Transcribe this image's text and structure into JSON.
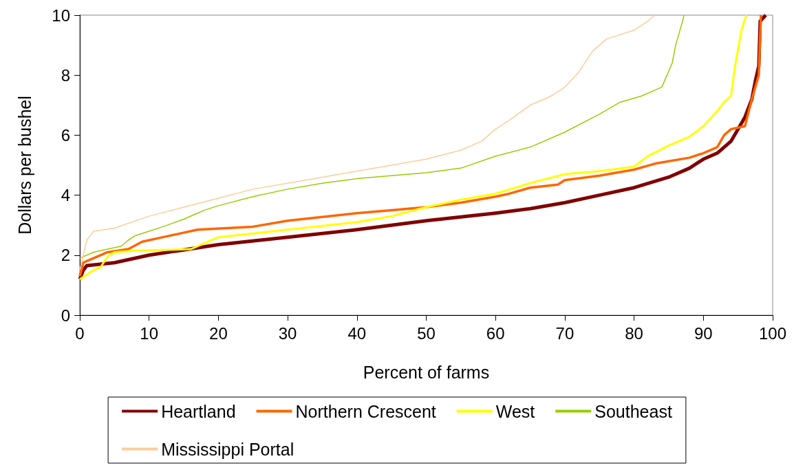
{
  "chart_data": {
    "type": "line",
    "xlabel": "Percent of farms",
    "ylabel": "Dollars per bushel",
    "xlim": [
      0,
      100
    ],
    "xticks": [
      0,
      10,
      20,
      30,
      40,
      50,
      60,
      70,
      80,
      90,
      100
    ],
    "ylim": [
      0,
      10
    ],
    "yticks": [
      0,
      2,
      4,
      6,
      8,
      10
    ],
    "legend": "bottom",
    "grid": false,
    "series": [
      {
        "name": "Heartland",
        "color": "#800000",
        "x": [
          0,
          0.5,
          1,
          5,
          10,
          20,
          30,
          40,
          50,
          60,
          65,
          70,
          75,
          80,
          85,
          88,
          90,
          92,
          94,
          95,
          96,
          97,
          97.5,
          98,
          98.2,
          99
        ],
        "values": [
          1.2,
          1.5,
          1.65,
          1.75,
          2.0,
          2.35,
          2.6,
          2.85,
          3.15,
          3.4,
          3.55,
          3.75,
          4.0,
          4.25,
          4.6,
          4.9,
          5.2,
          5.4,
          5.8,
          6.2,
          6.6,
          7.2,
          7.8,
          8.3,
          9.8,
          10
        ]
      },
      {
        "name": "Northern Crescent",
        "color": "#ff6600",
        "x": [
          0,
          0.5,
          2,
          4,
          7,
          9,
          12,
          15,
          17,
          25,
          30,
          40,
          45,
          50,
          55,
          60,
          62,
          65,
          69,
          70,
          75,
          80,
          83,
          88,
          90,
          92,
          93,
          94,
          96,
          97,
          98,
          98.3
        ],
        "values": [
          1.3,
          1.75,
          1.9,
          2.1,
          2.2,
          2.45,
          2.6,
          2.75,
          2.85,
          2.95,
          3.15,
          3.4,
          3.5,
          3.6,
          3.75,
          3.95,
          4.05,
          4.25,
          4.35,
          4.5,
          4.65,
          4.85,
          5.05,
          5.25,
          5.4,
          5.6,
          6.0,
          6.2,
          6.3,
          7.2,
          8.0,
          10
        ]
      },
      {
        "name": "West",
        "color": "#ffff00",
        "x": [
          0,
          2,
          3,
          4,
          5,
          8,
          16,
          20,
          30,
          40,
          45,
          50,
          55,
          60,
          65,
          70,
          75,
          80,
          82,
          85,
          88,
          90,
          92,
          93,
          94,
          94.5,
          95.5,
          96.2
        ],
        "values": [
          1.2,
          1.5,
          1.6,
          1.95,
          2.1,
          2.15,
          2.2,
          2.6,
          2.85,
          3.1,
          3.3,
          3.6,
          3.85,
          4.05,
          4.4,
          4.7,
          4.8,
          4.95,
          5.3,
          5.65,
          5.95,
          6.3,
          6.8,
          7.1,
          7.3,
          8.2,
          9.5,
          10
        ]
      },
      {
        "name": "Southeast",
        "color": "#99cc00",
        "x": [
          0,
          2,
          4,
          6,
          7,
          8,
          10,
          12,
          15,
          17,
          18,
          20,
          25,
          30,
          35,
          40,
          45,
          50,
          55,
          60,
          65,
          70,
          75,
          78,
          81,
          84,
          85.5,
          86,
          87,
          87.2
        ],
        "values": [
          1.9,
          2.1,
          2.2,
          2.3,
          2.5,
          2.65,
          2.8,
          2.95,
          3.2,
          3.4,
          3.5,
          3.65,
          3.95,
          4.2,
          4.4,
          4.55,
          4.65,
          4.75,
          4.9,
          5.3,
          5.6,
          6.1,
          6.7,
          7.1,
          7.3,
          7.6,
          8.4,
          9.0,
          9.8,
          10
        ]
      },
      {
        "name": "Mississippi Portal",
        "color": "#ffcc99",
        "x": [
          0,
          0.5,
          1,
          2,
          5,
          10,
          15,
          20,
          25,
          30,
          35,
          40,
          45,
          50,
          55,
          58,
          60,
          62,
          65,
          68,
          70,
          72,
          74,
          76,
          80,
          82,
          83
        ],
        "values": [
          1.5,
          2.0,
          2.5,
          2.8,
          2.9,
          3.3,
          3.6,
          3.9,
          4.2,
          4.4,
          4.6,
          4.8,
          5.0,
          5.2,
          5.5,
          5.8,
          6.2,
          6.5,
          7.0,
          7.3,
          7.6,
          8.1,
          8.8,
          9.2,
          9.5,
          9.8,
          10
        ]
      }
    ]
  }
}
